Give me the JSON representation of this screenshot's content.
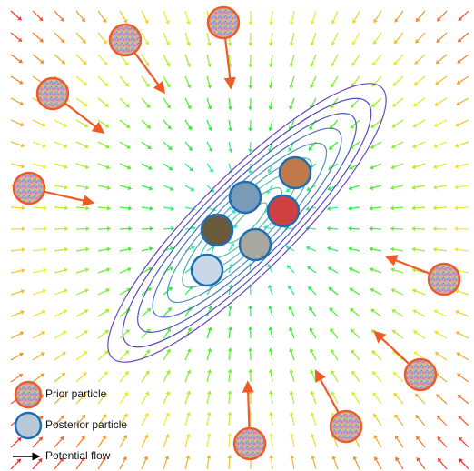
{
  "legend": {
    "prior": "Prior particle",
    "posterior": "Posterior particle",
    "flow": "Potential flow"
  }
}
